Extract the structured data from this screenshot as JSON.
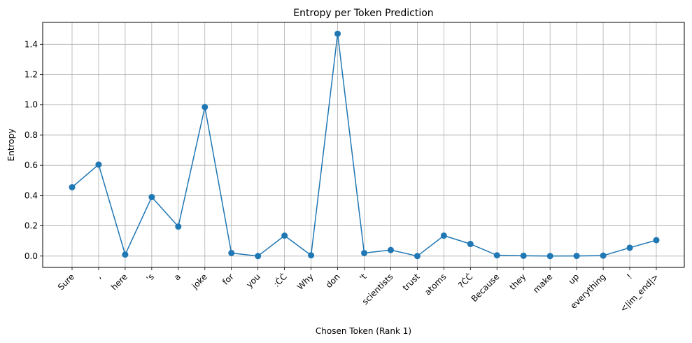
{
  "chart_data": {
    "type": "line",
    "title": "Entropy per Token Prediction",
    "xlabel": "Chosen Token (Rank 1)",
    "ylabel": "Entropy",
    "categories": [
      "Sure",
      ",",
      "here",
      "'s",
      "a",
      "joke",
      "for",
      "you",
      ":ĊĊ",
      "Why",
      "don",
      "'t",
      "scientists",
      "trust",
      "atoms",
      "?ĊĊ",
      "Because",
      "they",
      "make",
      "up",
      "everything",
      "!",
      "<|im_end|>"
    ],
    "series": [
      {
        "values": [
          0.455,
          0.605,
          0.01,
          0.39,
          0.195,
          0.985,
          0.02,
          0.0,
          0.135,
          0.005,
          1.47,
          0.02,
          0.04,
          0.0,
          0.135,
          0.08,
          0.005,
          0.002,
          0.0,
          0.001,
          0.003,
          0.055,
          0.105
        ],
        "color": "#1f77b4"
      }
    ],
    "ylim": [
      -0.075,
      1.545
    ],
    "yticks": [
      "0.0",
      "0.2",
      "0.4",
      "0.6",
      "0.8",
      "1.0",
      "1.2",
      "1.4"
    ],
    "grid": true,
    "marker": "circle"
  }
}
